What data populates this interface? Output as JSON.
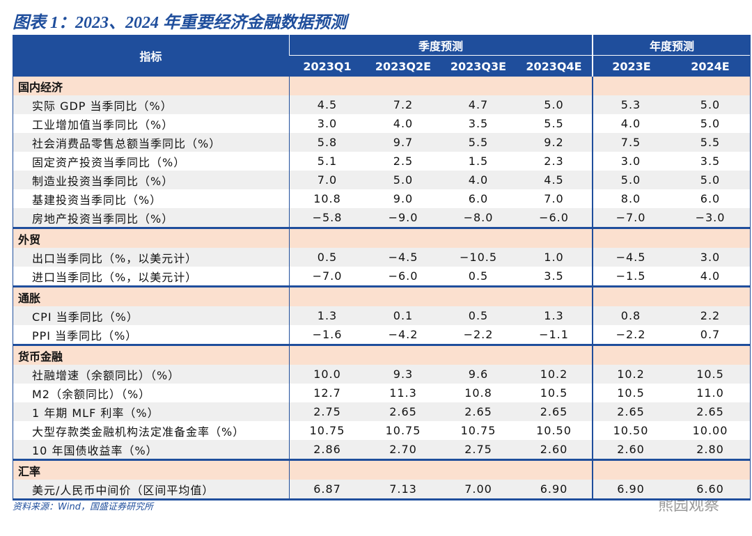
{
  "title": "图表 1：2023、2024 年重要经济金融数据预测",
  "table": {
    "header": {
      "indicator": "指标",
      "quarterly": "季度预测",
      "annual": "年度预测",
      "columns": [
        "2023Q1",
        "2023Q2E",
        "2023Q3E",
        "2023Q4E",
        "2023E",
        "2024E"
      ]
    },
    "sections": [
      {
        "name": "国内经济",
        "rows": [
          [
            "实际 GDP 当季同比（%）",
            "4.5",
            "7.2",
            "4.7",
            "5.0",
            "5.3",
            "5.0"
          ],
          [
            "工业增加值当季同比（%）",
            "3.0",
            "4.0",
            "3.5",
            "5.5",
            "4.0",
            "5.0"
          ],
          [
            "社会消费品零售总额当季同比（%）",
            "5.8",
            "9.7",
            "5.5",
            "9.2",
            "7.5",
            "5.5"
          ],
          [
            "固定资产投资当季同比（%）",
            "5.1",
            "2.5",
            "1.5",
            "2.3",
            "3.0",
            "3.5"
          ],
          [
            "制造业投资当季同比（%）",
            "7.0",
            "5.0",
            "4.0",
            "4.5",
            "5.0",
            "5.0"
          ],
          [
            "基建投资当季同比（%）",
            "10.8",
            "9.0",
            "6.0",
            "7.0",
            "8.0",
            "6.0"
          ],
          [
            "房地产投资当季同比（%）",
            "−5.8",
            "−9.0",
            "−8.0",
            "−6.0",
            "−7.0",
            "−3.0"
          ]
        ]
      },
      {
        "name": "外贸",
        "rows": [
          [
            "出口当季同比（%，以美元计）",
            "0.5",
            "−4.5",
            "−10.5",
            "1.0",
            "−4.5",
            "3.0"
          ],
          [
            "进口当季同比（%，以美元计）",
            "−7.0",
            "−6.0",
            "0.5",
            "3.5",
            "−1.5",
            "4.0"
          ]
        ]
      },
      {
        "name": "通胀",
        "rows": [
          [
            "CPI 当季同比（%）",
            "1.3",
            "0.1",
            "0.5",
            "1.3",
            "0.8",
            "2.2"
          ],
          [
            "PPI 当季同比（%）",
            "−1.6",
            "−4.2",
            "−2.2",
            "−1.1",
            "−2.2",
            "0.7"
          ]
        ]
      },
      {
        "name": "货币金融",
        "rows": [
          [
            "社融增速（余额同比）（%）",
            "10.0",
            "9.3",
            "9.6",
            "10.2",
            "10.2",
            "10.5"
          ],
          [
            "M2（余额同比）（%）",
            "12.7",
            "11.3",
            "10.8",
            "10.5",
            "10.5",
            "11.0"
          ],
          [
            "1 年期 MLF 利率（%）",
            "2.75",
            "2.65",
            "2.65",
            "2.65",
            "2.65",
            "2.65"
          ],
          [
            "大型存款类金融机构法定准备金率（%）",
            "10.75",
            "10.75",
            "10.75",
            "10.50",
            "10.50",
            "10.00"
          ],
          [
            "10 年国债收益率（%）",
            "2.86",
            "2.70",
            "2.75",
            "2.60",
            "2.60",
            "2.80"
          ]
        ]
      },
      {
        "name": "汇率",
        "rows": [
          [
            "美元/人民币中间价（区间平均值）",
            "6.87",
            "7.13",
            "7.00",
            "6.90",
            "6.90",
            "6.60"
          ]
        ]
      }
    ]
  },
  "source": "资料来源：Wind，国盛证券研究所",
  "watermark": "熊园观察"
}
